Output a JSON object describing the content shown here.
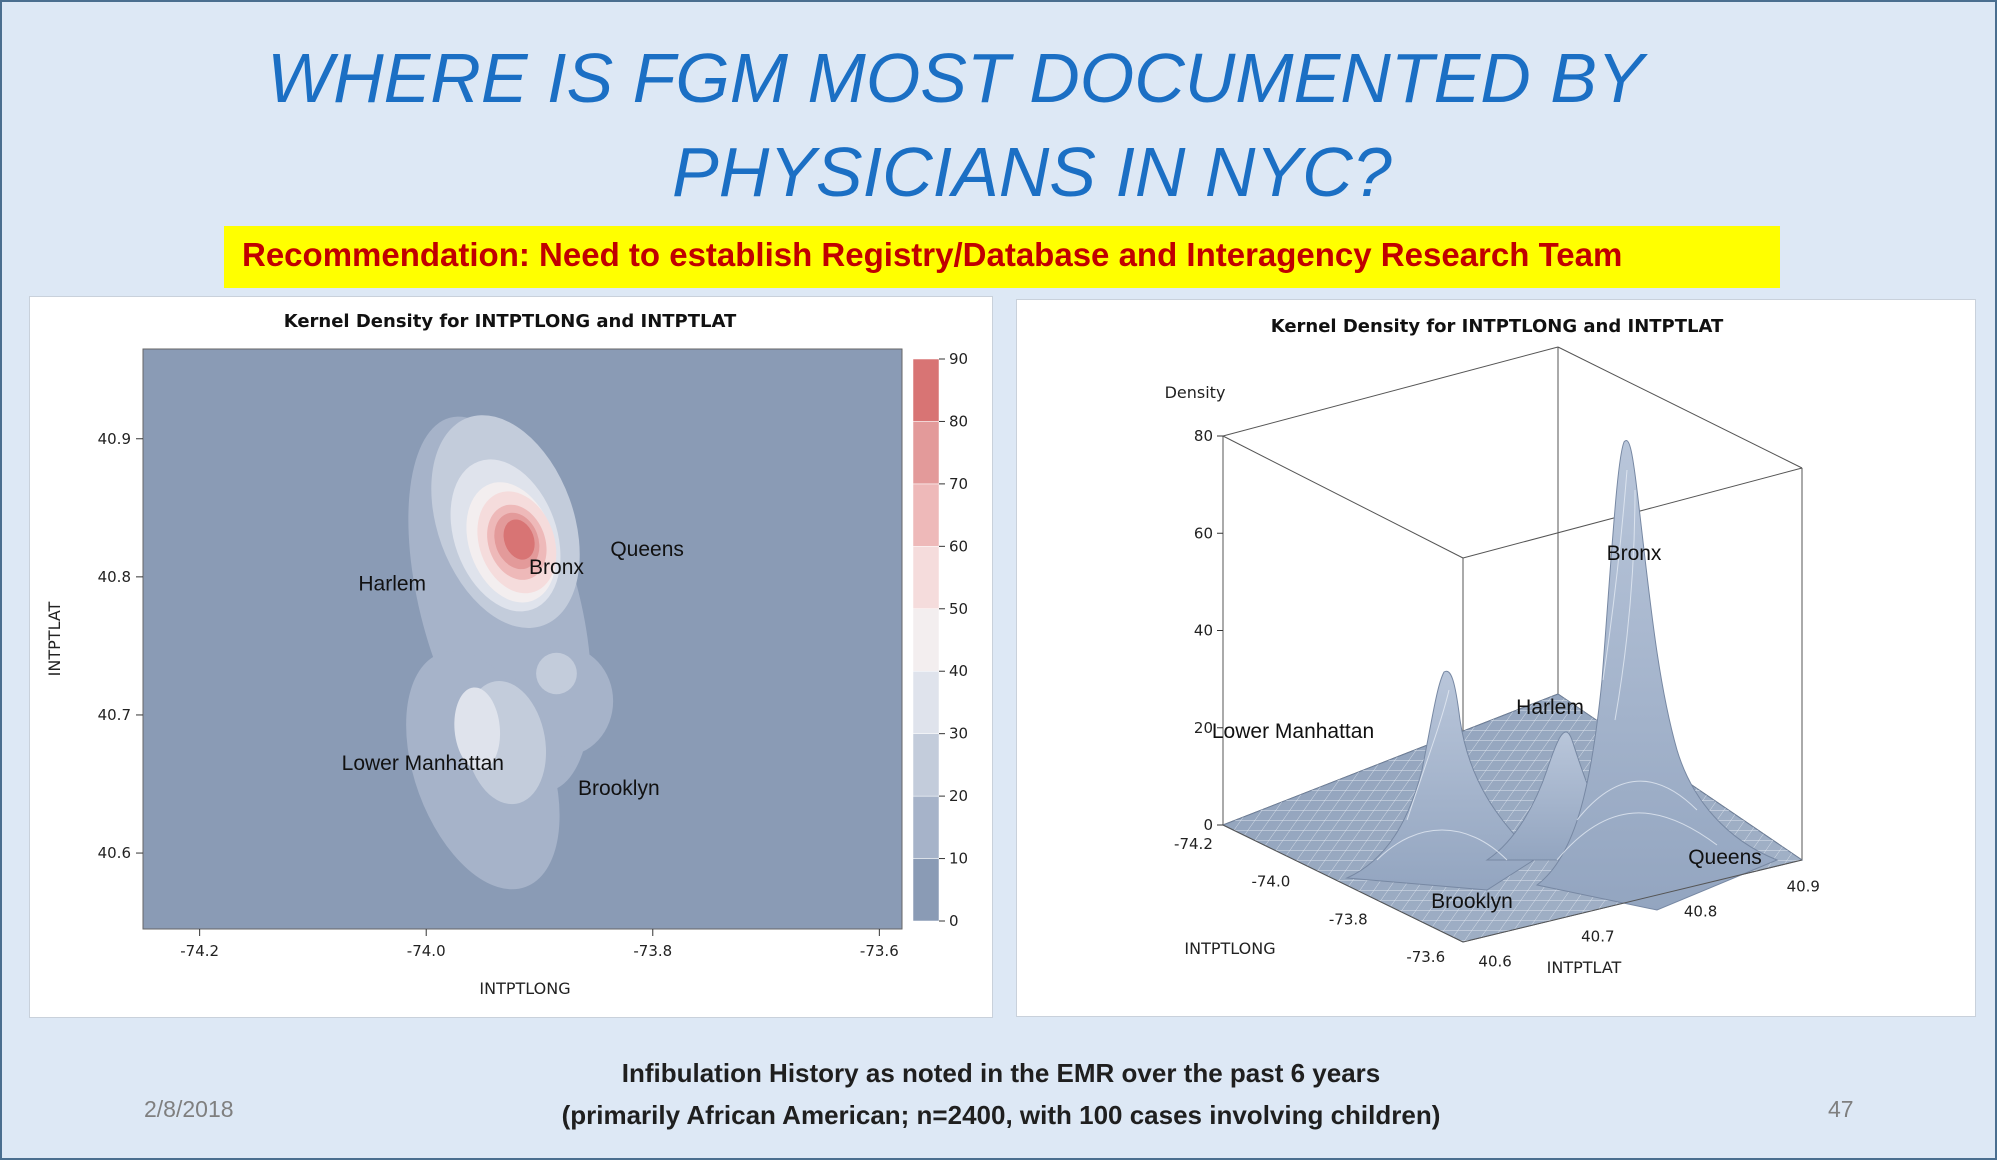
{
  "slide": {
    "title_line1": "WHERE IS FGM MOST DOCUMENTED BY",
    "title_line2": "PHYSICIANS IN NYC?",
    "recommendation": "Recommendation: Need to establish Registry/Database and Interagency Research Team",
    "caption_line1": "Infibulation History as noted in the EMR over the past 6 years",
    "caption_line2": "(primarily African American; n=2400, with 100 cases involving children)",
    "date": "2/8/2018",
    "slide_number": "47",
    "colors": {
      "title": "#1b6fc4",
      "highlight": "#ffff00",
      "recommendation_text": "#c00000",
      "background": "#dde8f5"
    }
  },
  "chart_data": [
    {
      "type": "heatmap",
      "title": "Kernel Density for INTPTLONG and INTPTLAT",
      "xlabel": "INTPTLONG",
      "ylabel": "INTPTLAT",
      "xlim": [
        -74.25,
        -73.58
      ],
      "ylim": [
        40.545,
        40.965
      ],
      "xticks": [
        -74.2,
        -74.0,
        -73.8,
        -73.6
      ],
      "yticks": [
        40.6,
        40.7,
        40.8,
        40.9
      ],
      "xtick_labels": [
        "-74.2",
        "-74.0",
        "-73.8",
        "-73.6"
      ],
      "ytick_labels": [
        "40.6",
        "40.7",
        "40.8",
        "40.9"
      ],
      "colorbar": {
        "levels": [
          0,
          10,
          20,
          30,
          40,
          50,
          60,
          70,
          80,
          90
        ],
        "labels": [
          "0",
          "10",
          "20",
          "30",
          "40",
          "50",
          "60",
          "70",
          "80",
          "90"
        ],
        "colors": [
          "#8a9bb5",
          "#a6b3c9",
          "#c3ccdb",
          "#dfe3ec",
          "#f3eeef",
          "#f5dcdc",
          "#eeb9b9",
          "#e39a9a",
          "#d87474"
        ]
      },
      "annotations": [
        {
          "text": "Harlem",
          "x": -74.03,
          "y": 40.79
        },
        {
          "text": "Bronx",
          "x": -73.885,
          "y": 40.802
        },
        {
          "text": "Queens",
          "x": -73.805,
          "y": 40.815
        },
        {
          "text": "Lower Manhattan",
          "x": -74.003,
          "y": 40.66
        },
        {
          "text": "Brooklyn",
          "x": -73.83,
          "y": 40.642
        }
      ]
    },
    {
      "type": "surface",
      "title": "Kernel Density for INTPTLONG and INTPTLAT",
      "zlabel": "Density",
      "xlabel": "INTPTLONG",
      "ylabel": "INTPTLAT",
      "zlim": [
        0,
        80
      ],
      "zticks": [
        "0",
        "20",
        "40",
        "60",
        "80"
      ],
      "xticks": [
        "-74.2",
        "-74.0",
        "-73.8",
        "-73.6"
      ],
      "yticks": [
        "40.6",
        "40.7",
        "40.8",
        "40.9"
      ],
      "peaks": [
        {
          "name": "Bronx",
          "density": 78
        },
        {
          "name": "Lower Manhattan",
          "density": 27
        },
        {
          "name": "Harlem",
          "density": 18
        }
      ],
      "annotations": [
        "Bronx",
        "Harlem",
        "Lower Manhattan",
        "Queens",
        "Brooklyn"
      ]
    }
  ]
}
